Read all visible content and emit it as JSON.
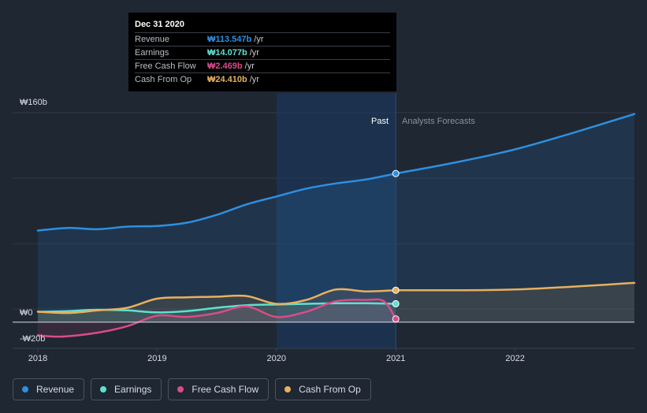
{
  "chart_data": {
    "type": "area",
    "currency": "₩",
    "y_ticks": [
      {
        "value": 160,
        "label": "₩160b"
      },
      {
        "value": 0,
        "label": "₩0"
      },
      {
        "value": -20,
        "label": "-₩20b"
      }
    ],
    "ylim": [
      -20,
      160
    ],
    "xlim": [
      2018,
      2023
    ],
    "x_ticks": [
      {
        "value": 2018,
        "label": "2018"
      },
      {
        "value": 2019,
        "label": "2019"
      },
      {
        "value": 2020,
        "label": "2020"
      },
      {
        "value": 2021,
        "label": "2021"
      },
      {
        "value": 2022,
        "label": "2022"
      }
    ],
    "divider_x": 2021,
    "highlight_range": [
      2020,
      2021
    ],
    "past_label": "Past",
    "forecast_label": "Analysts Forecasts",
    "series": [
      {
        "name": "Revenue",
        "color": "#2e8fe0",
        "points": [
          [
            2018,
            70
          ],
          [
            2018.25,
            72
          ],
          [
            2018.5,
            71
          ],
          [
            2018.75,
            73
          ],
          [
            2019,
            73.5
          ],
          [
            2019.25,
            76
          ],
          [
            2019.5,
            82
          ],
          [
            2019.75,
            90
          ],
          [
            2020,
            96
          ],
          [
            2020.25,
            102
          ],
          [
            2020.5,
            106
          ],
          [
            2020.75,
            109
          ],
          [
            2021,
            113.547
          ]
        ],
        "forecast": [
          [
            2021,
            113.547
          ],
          [
            2021.5,
            122
          ],
          [
            2022,
            132
          ],
          [
            2022.5,
            145
          ],
          [
            2023,
            159
          ]
        ]
      },
      {
        "name": "Earnings",
        "color": "#5fe0d0",
        "points": [
          [
            2018,
            8
          ],
          [
            2018.25,
            8.5
          ],
          [
            2018.5,
            9.5
          ],
          [
            2018.75,
            9
          ],
          [
            2019,
            7.5
          ],
          [
            2019.25,
            8.5
          ],
          [
            2019.5,
            11
          ],
          [
            2019.75,
            13
          ],
          [
            2020,
            13.5
          ],
          [
            2020.25,
            14
          ],
          [
            2020.5,
            14.5
          ],
          [
            2020.75,
            14.5
          ],
          [
            2021,
            14.077
          ]
        ],
        "forecast": []
      },
      {
        "name": "Free Cash Flow",
        "color": "#d94c8a",
        "points": [
          [
            2018,
            -10
          ],
          [
            2018.2,
            -11
          ],
          [
            2018.5,
            -8
          ],
          [
            2018.75,
            -3
          ],
          [
            2019,
            5
          ],
          [
            2019.25,
            4
          ],
          [
            2019.5,
            7
          ],
          [
            2019.75,
            12
          ],
          [
            2020,
            4
          ],
          [
            2020.25,
            8
          ],
          [
            2020.5,
            16
          ],
          [
            2020.75,
            17
          ],
          [
            2020.9,
            16
          ],
          [
            2021,
            2.469
          ]
        ],
        "forecast": []
      },
      {
        "name": "Cash From Op",
        "color": "#e8b05e",
        "points": [
          [
            2018,
            8
          ],
          [
            2018.25,
            7
          ],
          [
            2018.5,
            9
          ],
          [
            2018.75,
            11
          ],
          [
            2019,
            18
          ],
          [
            2019.25,
            19
          ],
          [
            2019.5,
            19.5
          ],
          [
            2019.75,
            20
          ],
          [
            2020,
            14
          ],
          [
            2020.25,
            17
          ],
          [
            2020.5,
            25
          ],
          [
            2020.75,
            23.5
          ],
          [
            2021,
            24.41
          ]
        ],
        "forecast": [
          [
            2021,
            24.41
          ],
          [
            2022,
            25
          ],
          [
            2023,
            30
          ]
        ]
      }
    ],
    "tooltip": {
      "date": "Dec 31 2020",
      "unit": "/yr",
      "rows": [
        {
          "label": "Revenue",
          "value": "₩113.547b",
          "color": "#2e8fe0"
        },
        {
          "label": "Earnings",
          "value": "₩14.077b",
          "color": "#5fe0d0"
        },
        {
          "label": "Free Cash Flow",
          "value": "₩2.469b",
          "color": "#d94c8a"
        },
        {
          "label": "Cash From Op",
          "value": "₩24.410b",
          "color": "#e8b05e"
        }
      ]
    }
  },
  "legend": [
    {
      "label": "Revenue",
      "color": "#2e8fe0"
    },
    {
      "label": "Earnings",
      "color": "#5fe0d0"
    },
    {
      "label": "Free Cash Flow",
      "color": "#d94c8a"
    },
    {
      "label": "Cash From Op",
      "color": "#e8b05e"
    }
  ]
}
